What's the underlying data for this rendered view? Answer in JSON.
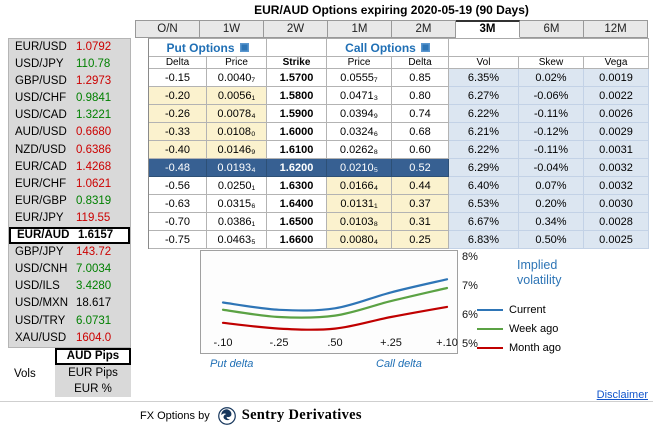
{
  "header": {
    "title": "EUR/AUD Options expiring 2020-05-19 (90 Days)"
  },
  "tabs": {
    "items": [
      {
        "label": "O/N",
        "selected": false
      },
      {
        "label": "1W",
        "selected": false
      },
      {
        "label": "2W",
        "selected": false
      },
      {
        "label": "1M",
        "selected": false
      },
      {
        "label": "2M",
        "selected": false
      },
      {
        "label": "3M",
        "selected": true
      },
      {
        "label": "6M",
        "selected": false
      },
      {
        "label": "12M",
        "selected": false
      }
    ]
  },
  "sidebar": {
    "pairs": [
      {
        "name": "EUR/USD",
        "value": "1.0792",
        "color": "red",
        "selected": false
      },
      {
        "name": "USD/JPY",
        "value": "110.78",
        "color": "green",
        "selected": false
      },
      {
        "name": "GBP/USD",
        "value": "1.2973",
        "color": "red",
        "selected": false
      },
      {
        "name": "USD/CHF",
        "value": "0.9841",
        "color": "green",
        "selected": false
      },
      {
        "name": "USD/CAD",
        "value": "1.3221",
        "color": "green",
        "selected": false
      },
      {
        "name": "AUD/USD",
        "value": "0.6680",
        "color": "red",
        "selected": false
      },
      {
        "name": "NZD/USD",
        "value": "0.6386",
        "color": "red",
        "selected": false
      },
      {
        "name": "EUR/CAD",
        "value": "1.4268",
        "color": "red",
        "selected": false
      },
      {
        "name": "EUR/CHF",
        "value": "1.0621",
        "color": "red",
        "selected": false
      },
      {
        "name": "EUR/GBP",
        "value": "0.8319",
        "color": "green",
        "selected": false
      },
      {
        "name": "EUR/JPY",
        "value": "119.55",
        "color": "red",
        "selected": false
      },
      {
        "name": "EUR/AUD",
        "value": "1.6157",
        "color": "black",
        "selected": true
      },
      {
        "name": "GBP/JPY",
        "value": "143.72",
        "color": "red",
        "selected": false
      },
      {
        "name": "USD/CNH",
        "value": "7.0034",
        "color": "green",
        "selected": false
      },
      {
        "name": "USD/ILS",
        "value": "3.4280",
        "color": "green",
        "selected": false
      },
      {
        "name": "USD/MXN",
        "value": "18.617",
        "color": "black",
        "selected": false
      },
      {
        "name": "USD/TRY",
        "value": "6.0731",
        "color": "green",
        "selected": false
      },
      {
        "name": "XAU/USD",
        "value": "1604.0",
        "color": "red",
        "selected": false
      }
    ],
    "vols_label": "Vols",
    "vol_modes": [
      {
        "label": "AUD Pips",
        "selected": true
      },
      {
        "label": "EUR Pips",
        "selected": false
      },
      {
        "label": "EUR %",
        "selected": false
      }
    ]
  },
  "table": {
    "put_header": "Put Options",
    "call_header": "Call Options",
    "columns": [
      "Delta",
      "Price",
      "Strike",
      "Price",
      "Delta",
      "Vol",
      "Skew",
      "Vega"
    ],
    "rows": [
      {
        "put_delta": "-0.15",
        "put_price": "0.0040₇",
        "strike": "1.5700",
        "call_price": "0.0555₇",
        "call_delta": "0.85",
        "vol": "6.35%",
        "skew": "0.02%",
        "vega": "0.0019",
        "put_otm": false,
        "call_otm": false,
        "selected": false
      },
      {
        "put_delta": "-0.20",
        "put_price": "0.0056₁",
        "strike": "1.5800",
        "call_price": "0.0471₃",
        "call_delta": "0.80",
        "vol": "6.27%",
        "skew": "-0.06%",
        "vega": "0.0022",
        "put_otm": true,
        "call_otm": false,
        "selected": false
      },
      {
        "put_delta": "-0.26",
        "put_price": "0.0078₄",
        "strike": "1.5900",
        "call_price": "0.0394₉",
        "call_delta": "0.74",
        "vol": "6.22%",
        "skew": "-0.11%",
        "vega": "0.0026",
        "put_otm": true,
        "call_otm": false,
        "selected": false
      },
      {
        "put_delta": "-0.33",
        "put_price": "0.0108₀",
        "strike": "1.6000",
        "call_price": "0.0324₆",
        "call_delta": "0.68",
        "vol": "6.21%",
        "skew": "-0.12%",
        "vega": "0.0029",
        "put_otm": true,
        "call_otm": false,
        "selected": false
      },
      {
        "put_delta": "-0.40",
        "put_price": "0.0146₉",
        "strike": "1.6100",
        "call_price": "0.0262₈",
        "call_delta": "0.60",
        "vol": "6.22%",
        "skew": "-0.11%",
        "vega": "0.0031",
        "put_otm": true,
        "call_otm": false,
        "selected": false
      },
      {
        "put_delta": "-0.48",
        "put_price": "0.0193₄",
        "strike": "1.6200",
        "call_price": "0.0210₅",
        "call_delta": "0.52",
        "vol": "6.29%",
        "skew": "-0.04%",
        "vega": "0.0032",
        "put_otm": false,
        "call_otm": false,
        "selected": true
      },
      {
        "put_delta": "-0.56",
        "put_price": "0.0250₁",
        "strike": "1.6300",
        "call_price": "0.0166₄",
        "call_delta": "0.44",
        "vol": "6.40%",
        "skew": "0.07%",
        "vega": "0.0032",
        "put_otm": false,
        "call_otm": true,
        "selected": false
      },
      {
        "put_delta": "-0.63",
        "put_price": "0.0315₆",
        "strike": "1.6400",
        "call_price": "0.0131₁",
        "call_delta": "0.37",
        "vol": "6.53%",
        "skew": "0.20%",
        "vega": "0.0030",
        "put_otm": false,
        "call_otm": true,
        "selected": false
      },
      {
        "put_delta": "-0.70",
        "put_price": "0.0386₁",
        "strike": "1.6500",
        "call_price": "0.0103₈",
        "call_delta": "0.31",
        "vol": "6.67%",
        "skew": "0.34%",
        "vega": "0.0028",
        "put_otm": false,
        "call_otm": true,
        "selected": false
      },
      {
        "put_delta": "-0.75",
        "put_price": "0.0463₅",
        "strike": "1.6600",
        "call_price": "0.0080₄",
        "call_delta": "0.25",
        "vol": "6.83%",
        "skew": "0.50%",
        "vega": "0.0025",
        "put_otm": false,
        "call_otm": true,
        "selected": false
      }
    ]
  },
  "chart_data": {
    "type": "line",
    "legend_title": "Implied volatility",
    "legend_position": "right",
    "x_labels": [
      "-.10",
      "-.25",
      ".50",
      "+.25",
      "+.10"
    ],
    "x_axis_left_label": "Put delta",
    "x_axis_right_label": "Call delta",
    "y_ticks": [
      "8%",
      "7%",
      "6%",
      "5%"
    ],
    "ylim": [
      5,
      8
    ],
    "grid": false,
    "series": [
      {
        "name": "Current",
        "color": "#2E75B6",
        "values": [
          6.5,
          6.25,
          6.3,
          6.85,
          7.3
        ]
      },
      {
        "name": "Week ago",
        "color": "#5BA244",
        "values": [
          6.25,
          6.0,
          6.05,
          6.55,
          7.0
        ]
      },
      {
        "name": "Month ago",
        "color": "#C00000",
        "values": [
          5.8,
          5.6,
          5.6,
          6.0,
          6.35
        ]
      }
    ]
  },
  "links": {
    "disclaimer": "Disclaimer"
  },
  "footer": {
    "prefix": "FX Options by",
    "brand": "Sentry Derivatives"
  },
  "colors": {
    "accent_blue": "#1F6FB5",
    "selected_row": "#376092",
    "otm_yellow": "#FBF2CE",
    "greek_columns_blue": "#DCE6F1",
    "value_red": "#CC0000",
    "value_green": "#008000",
    "sidebar_gray": "#D9D9D9"
  }
}
